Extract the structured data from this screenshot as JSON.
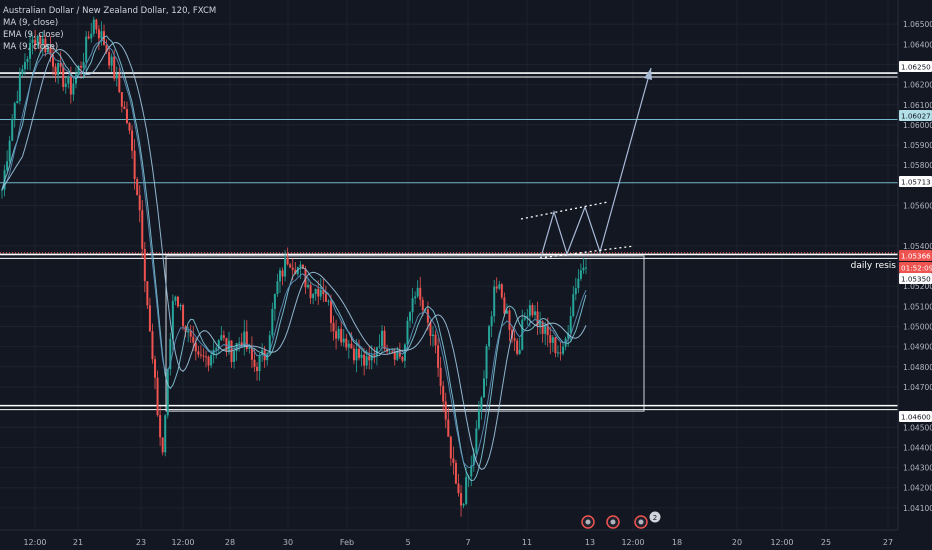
{
  "header": {
    "title": "Australian Dollar / New Zealand Dollar, 120, FXCM",
    "indicators": [
      "MA (9, close)",
      "EMA (9, close)",
      "MA (9, close)"
    ]
  },
  "colors": {
    "background": "#131722",
    "grid": "#1e222d",
    "up": "#26a69a",
    "down": "#ef5350",
    "ma": "#7ec8d8",
    "ema": "#5b8fb9",
    "line_teal": "#6fb8c9",
    "last_price": "#ef5350",
    "annotation": "#a8b9d6"
  },
  "chart_data": {
    "type": "candlestick",
    "symbol": "AUDNZD",
    "timeframe": "120",
    "y_range": [
      1.0404,
      1.0658
    ],
    "y_ticks": [
      "1.06500",
      "1.06400",
      "1.06300",
      "1.06200",
      "1.06100",
      "1.06000",
      "1.05900",
      "1.05800",
      "1.05600",
      "1.05400",
      "1.05200",
      "1.05100",
      "1.05000",
      "1.04900",
      "1.04800",
      "1.04700",
      "1.04500",
      "1.04400",
      "1.04300",
      "1.04200",
      "1.04100"
    ],
    "x_ticks": [
      "12:00",
      "21",
      "23",
      "12:00",
      "28",
      "30",
      "Feb",
      "5",
      "7",
      "11",
      "13",
      "12:00",
      "18",
      "20",
      "12:00",
      "25",
      "27"
    ],
    "price_path": [
      [
        1.0568,
        1.0608,
        1.0632,
        1.0645,
        1.0638,
        1.0625,
        1.0618,
        1.0632,
        1.0652,
        1.064,
        1.0622,
        1.06,
        1.056,
        1.049,
        1.0435,
        1.052,
        1.05,
        1.0482,
        1.0485,
        1.0495,
        1.0487,
        1.0495,
        1.048,
        1.0486,
        1.052,
        1.0535,
        1.0528,
        1.0518,
        1.052,
        1.05,
        1.0494,
        1.0486,
        1.048,
        1.0495,
        1.049,
        1.0484,
        1.052,
        1.0504,
        1.0484,
        1.044,
        1.041,
        1.043,
        1.047,
        1.0522,
        1.0508,
        1.0488,
        1.0513,
        1.05,
        1.0492,
        1.0486,
        1.052,
        1.0534
      ]
    ],
    "candles": 230,
    "horizontal_levels": [
      {
        "price": "1.06250",
        "style": "white-double"
      },
      {
        "price": "1.06027",
        "style": "teal"
      },
      {
        "price": "1.05713",
        "style": "teal"
      },
      {
        "price": "1.05366",
        "style": "last-price"
      },
      {
        "price": "1.05350",
        "style": "white-double"
      },
      {
        "price": "1.04600",
        "style": "white-double"
      }
    ],
    "price_labels": [
      {
        "text": "1.06250",
        "bg": "#ffffff",
        "fg": "#131722"
      },
      {
        "text": "1.06027",
        "bg": "#b2dfe8",
        "fg": "#131722"
      },
      {
        "text": "1.05713",
        "bg": "#ffffff",
        "fg": "#131722"
      },
      {
        "text": "1.05366",
        "bg": "#ef5350",
        "fg": "#ffffff"
      },
      {
        "text": "01:52:09",
        "bg": "#ef5350",
        "fg": "#ffffff"
      },
      {
        "text": "1.05350",
        "bg": "#ffffff",
        "fg": "#131722"
      },
      {
        "text": "1.04600",
        "bg": "#ffffff",
        "fg": "#131722"
      }
    ],
    "range_box": {
      "top": 1.0535,
      "bottom": 1.0458
    },
    "annotations": {
      "label": "daily resis",
      "projection": "zigzag up to 1.06250"
    },
    "events": [
      "earnings-icon",
      "earnings-icon",
      "earnings-icon",
      "2"
    ]
  }
}
